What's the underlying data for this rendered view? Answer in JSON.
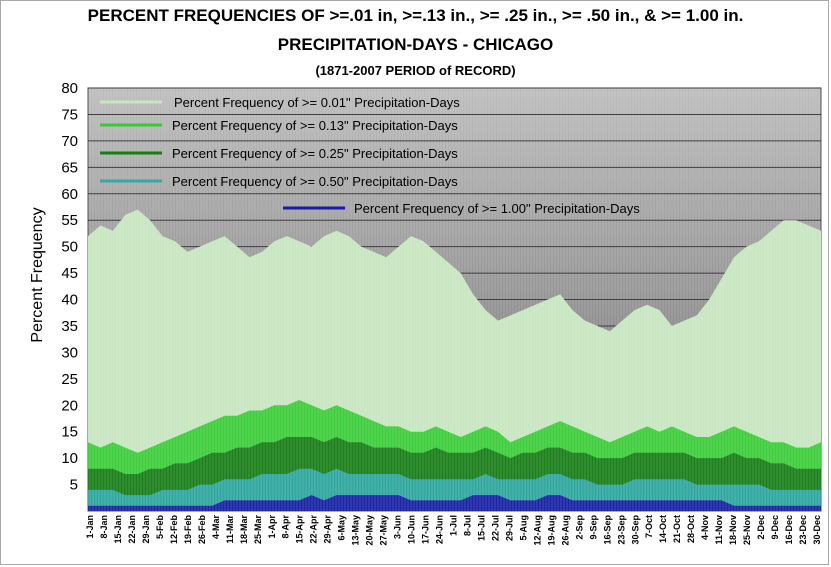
{
  "chart_data": {
    "type": "area",
    "title": "PERCENT FREQUENCIES OF >=.01 in,  >=.13 in., >= .25 in., >= .50 in., & >= 1.00 in.",
    "subtitle": "PRECIPITATION-DAYS  - CHICAGO",
    "period": "(1871-2007 PERIOD of RECORD)",
    "ylabel": "Percent Frequency",
    "xlabel": "",
    "ylim": [
      0,
      80
    ],
    "yticks": [
      "80",
      "75",
      "70",
      "65",
      "60",
      "55",
      "50",
      "45",
      "40",
      "35",
      "30",
      "25",
      "20",
      "15",
      "10",
      "5"
    ],
    "grid": true,
    "legend_position": "top-left",
    "x_ticks": [
      "1-Jan",
      "8-Jan",
      "15-Jan",
      "22-Jan",
      "29-Jan",
      "5-Feb",
      "12-Feb",
      "19-Feb",
      "26-Feb",
      "4-Mar",
      "11-Mar",
      "18-Mar",
      "25-Mar",
      "1-Apr",
      "8-Apr",
      "15-Apr",
      "22-Apr",
      "29-Apr",
      "6-May",
      "13-May",
      "20-May",
      "27-May",
      "3-Jun",
      "10-Jun",
      "17-Jun",
      "24-Jun",
      "1-Jul",
      "8-Jul",
      "15-Jul",
      "22-Jul",
      "29-Jul",
      "5-Aug",
      "12-Aug",
      "19-Aug",
      "26-Aug",
      "2-Sep",
      "9-Sep",
      "16-Sep",
      "23-Sep",
      "30-Sep",
      "7-Oct",
      "14-Oct",
      "21-Oct",
      "28-Oct",
      "4-Nov",
      "11-Nov",
      "18-Nov",
      "25-Nov",
      "2-Dec",
      "9-Dec",
      "16-Dec",
      "23-Dec",
      "30-Dec"
    ],
    "series": [
      {
        "name": "Percent Frequency of >= 0.01\" Precipitation-Days",
        "color": "#c8e6c0",
        "values": [
          52,
          54,
          53,
          56,
          57,
          55,
          52,
          51,
          49,
          50,
          51,
          52,
          50,
          48,
          49,
          51,
          52,
          51,
          50,
          52,
          53,
          52,
          50,
          49,
          48,
          50,
          52,
          51,
          49,
          47,
          45,
          41,
          38,
          36,
          37,
          38,
          39,
          40,
          41,
          38,
          36,
          35,
          34,
          36,
          38,
          39,
          38,
          35,
          36,
          37,
          40,
          44,
          48,
          50,
          51,
          53,
          55,
          55,
          54,
          53
        ]
      },
      {
        "name": "Percent Frequency of >= 0.13\" Precipitation-Days",
        "color": "#33cc33",
        "values": [
          13,
          12,
          13,
          12,
          11,
          12,
          13,
          14,
          15,
          16,
          17,
          18,
          18,
          19,
          19,
          20,
          20,
          21,
          20,
          19,
          20,
          19,
          18,
          17,
          16,
          16,
          15,
          15,
          16,
          15,
          14,
          15,
          16,
          15,
          13,
          14,
          15,
          16,
          17,
          16,
          15,
          14,
          13,
          14,
          15,
          16,
          15,
          16,
          15,
          14,
          14,
          15,
          16,
          15,
          14,
          13,
          13,
          12,
          12,
          13
        ]
      },
      {
        "name": "Percent Frequency of >= 0.25\" Precipitation-Days",
        "color": "#1a7a1a",
        "values": [
          8,
          8,
          8,
          7,
          7,
          8,
          8,
          9,
          9,
          10,
          11,
          11,
          12,
          12,
          13,
          13,
          14,
          14,
          14,
          13,
          14,
          13,
          13,
          12,
          12,
          12,
          11,
          11,
          12,
          11,
          11,
          11,
          12,
          11,
          10,
          11,
          11,
          12,
          12,
          11,
          11,
          10,
          10,
          10,
          11,
          11,
          11,
          11,
          11,
          10,
          10,
          10,
          11,
          10,
          10,
          9,
          9,
          8,
          8,
          8
        ]
      },
      {
        "name": "Percent Frequency of >= 0.50\" Precipitation-Days",
        "color": "#33aaaa",
        "values": [
          4,
          4,
          4,
          3,
          3,
          3,
          4,
          4,
          4,
          5,
          5,
          6,
          6,
          6,
          7,
          7,
          7,
          8,
          8,
          7,
          8,
          7,
          7,
          7,
          7,
          7,
          6,
          6,
          6,
          6,
          6,
          6,
          7,
          6,
          6,
          6,
          6,
          7,
          7,
          6,
          6,
          5,
          5,
          5,
          6,
          6,
          6,
          6,
          6,
          5,
          5,
          5,
          5,
          5,
          5,
          4,
          4,
          4,
          4,
          4
        ]
      },
      {
        "name": "Percent Frequency of >= 1.00\" Precipitation-Days",
        "color": "#1a1aa8",
        "values": [
          1,
          1,
          1,
          1,
          1,
          1,
          1,
          1,
          1,
          1,
          1,
          2,
          2,
          2,
          2,
          2,
          2,
          2,
          3,
          2,
          3,
          3,
          3,
          3,
          3,
          3,
          2,
          2,
          2,
          2,
          2,
          3,
          3,
          3,
          2,
          2,
          2,
          3,
          3,
          2,
          2,
          2,
          2,
          2,
          2,
          2,
          2,
          2,
          2,
          2,
          2,
          2,
          1,
          1,
          1,
          1,
          1,
          1,
          1,
          1
        ]
      }
    ]
  }
}
